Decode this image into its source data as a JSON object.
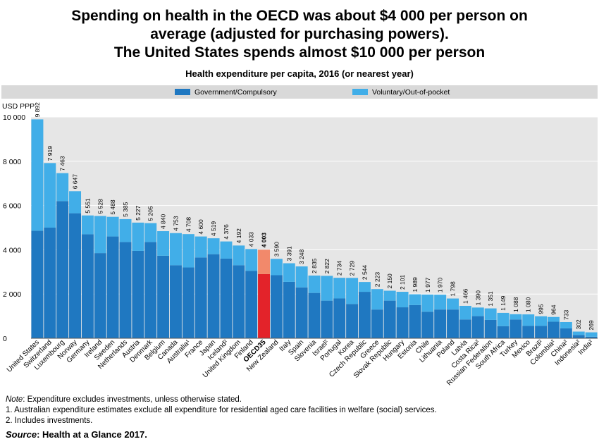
{
  "headline": {
    "line1": "Spending on health in the OECD was about $4 000 per person on",
    "line2": "average (adjusted for purchasing powers).",
    "line3": "The United States spends almost $10 000 per person"
  },
  "notes": {
    "note_label": "Note",
    "note_text": ": Expenditure excludes investments, unless otherwise stated.",
    "footnote1": "1. Australian expenditure estimates exclude all expenditure for residential aged care facilities in welfare (social) services.",
    "footnote2": "2. Includes investments.",
    "source_label": "Source",
    "source_text": ": Health at a Glance 2017."
  },
  "colors": {
    "government": "#1f78c1",
    "voluntary": "#41aee8",
    "oecd_government": "#e3232a",
    "oecd_voluntary": "#f2896b",
    "legend_band": "#d9d9d9",
    "plot_background": "#e6e6e6"
  },
  "chart_data": {
    "type": "bar",
    "stacked": true,
    "title": "Health expenditure per capita, 2016 (or nearest year)",
    "ylabel": "USD PPP",
    "ylim": [
      0,
      10000
    ],
    "yticks": [
      0,
      2000,
      4000,
      6000,
      8000,
      10000
    ],
    "ytick_labels": [
      "0",
      "2 000",
      "4 000",
      "6 000",
      "8 000",
      "10 000"
    ],
    "legend_position": "top",
    "grid": "horizontal",
    "categories": [
      "United States",
      "Switzerland",
      "Luxembourg",
      "Norway",
      "Germany",
      "Ireland",
      "Sweden",
      "Netherlands",
      "Austria",
      "Denmark",
      "Belgium",
      "Canada",
      "Australia¹",
      "France",
      "Japan",
      "Iceland²",
      "United Kingdom",
      "Finland",
      "OECD35",
      "New Zealand",
      "Italy",
      "Spain",
      "Slovenia",
      "Israel²",
      "Portugal",
      "Korea",
      "Czech Republic",
      "Greece",
      "Slovak Republic",
      "Hungary",
      "Estonia",
      "Chile",
      "Lithuania",
      "Poland",
      "Latvia",
      "Costa Rica²",
      "Russian Federation",
      "South Africa",
      "Turkey",
      "Mexico",
      "Brazil²",
      "Colombia²",
      "China²",
      "Indonesia²",
      "India²"
    ],
    "highlight": "OECD35",
    "totals": [
      9892,
      7919,
      7463,
      6647,
      5551,
      5528,
      5488,
      5385,
      5227,
      5205,
      4840,
      4753,
      4708,
      4600,
      4519,
      4376,
      4192,
      4033,
      4003,
      3590,
      3391,
      3248,
      2835,
      2822,
      2734,
      2729,
      2544,
      2223,
      2150,
      2101,
      1989,
      1977,
      1970,
      1798,
      1466,
      1390,
      1351,
      1149,
      1088,
      1080,
      995,
      964,
      733,
      302,
      269
    ],
    "total_labels": [
      "9 892",
      "7 919",
      "7 463",
      "6 647",
      "5 551",
      "5 528",
      "5 488",
      "5 385",
      "5 227",
      "5 205",
      "4 840",
      "4 753",
      "4 708",
      "4 600",
      "4 519",
      "4 376",
      "4 192",
      "4 033",
      "4 003",
      "3 590",
      "3 391",
      "3 248",
      "2 835",
      "2 822",
      "2 734",
      "2 729",
      "2 544",
      "2 223",
      "2 150",
      "2 101",
      "1 989",
      "1 977",
      "1 970",
      "1 798",
      "1 466",
      "1 390",
      "1 351",
      "1 149",
      "1 088",
      "1 080",
      "995",
      "964",
      "733",
      "302",
      "269"
    ],
    "series": [
      {
        "name": "Government/Compulsory",
        "values": [
          4860,
          5000,
          6200,
          5650,
          4700,
          3850,
          4600,
          4350,
          3950,
          4350,
          3730,
          3300,
          3200,
          3650,
          3800,
          3600,
          3300,
          3050,
          2900,
          2850,
          2550,
          2300,
          2050,
          1700,
          1800,
          1550,
          2100,
          1300,
          1700,
          1400,
          1500,
          1200,
          1300,
          1300,
          850,
          1000,
          830,
          550,
          850,
          560,
          560,
          750,
          450,
          150,
          70
        ]
      },
      {
        "name": "Voluntary/Out-of-pocket",
        "values": [
          5032,
          2919,
          1263,
          997,
          851,
          1678,
          888,
          1035,
          1277,
          855,
          1110,
          1453,
          1508,
          950,
          719,
          776,
          892,
          983,
          1103,
          740,
          841,
          948,
          785,
          1122,
          934,
          1179,
          444,
          923,
          450,
          701,
          489,
          777,
          670,
          498,
          616,
          390,
          521,
          599,
          238,
          520,
          435,
          214,
          283,
          152,
          199
        ]
      }
    ]
  }
}
